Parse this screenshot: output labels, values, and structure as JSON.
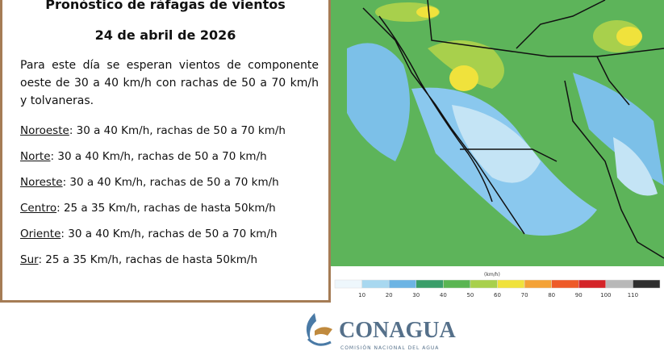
{
  "header": {
    "title": "Pronóstico de ráfagas de vientos",
    "date": "24 de abril de 2026"
  },
  "summary": "Para este día se esperan vientos de componente oeste de 30 a 40 km/h con rachas de 50 a 70 km/h y tolvaneras.",
  "regions": [
    {
      "name": "Noroeste",
      "text": ":  30 a 40 Km/h, rachas de 50 a 70 km/h"
    },
    {
      "name": "Norte",
      "text": ": 30 a 40 Km/h, rachas de 50 a 70 km/h"
    },
    {
      "name": "Noreste",
      "text": ": 30 a 40 Km/h, rachas de 50 a 70 km/h"
    },
    {
      "name": "Centro",
      "text": ":  25 a 35 Km/h, rachas de hasta 50km/h"
    },
    {
      "name": "Oriente",
      "text": ":  30 a 40 Km/h, rachas de 50 a 70 km/h"
    },
    {
      "name": "Sur",
      "text": ":  25 a 35 Km/h, rachas de hasta 50km/h"
    }
  ],
  "legend": {
    "unit": "(km/h)",
    "ticks": [
      10,
      20,
      30,
      40,
      50,
      60,
      70,
      80,
      90,
      100,
      110
    ],
    "colors": [
      "#eef7fc",
      "#a8d8f0",
      "#6cb4e4",
      "#3a9e6a",
      "#5ab552",
      "#a8d04c",
      "#f0e23c",
      "#f4a236",
      "#ee5a28",
      "#d42428",
      "#b8b8b8",
      "#2e2e2e"
    ]
  },
  "logo": {
    "name": "CONAGUA",
    "subtitle": "COMISIÓN NACIONAL DEL AGUA"
  }
}
